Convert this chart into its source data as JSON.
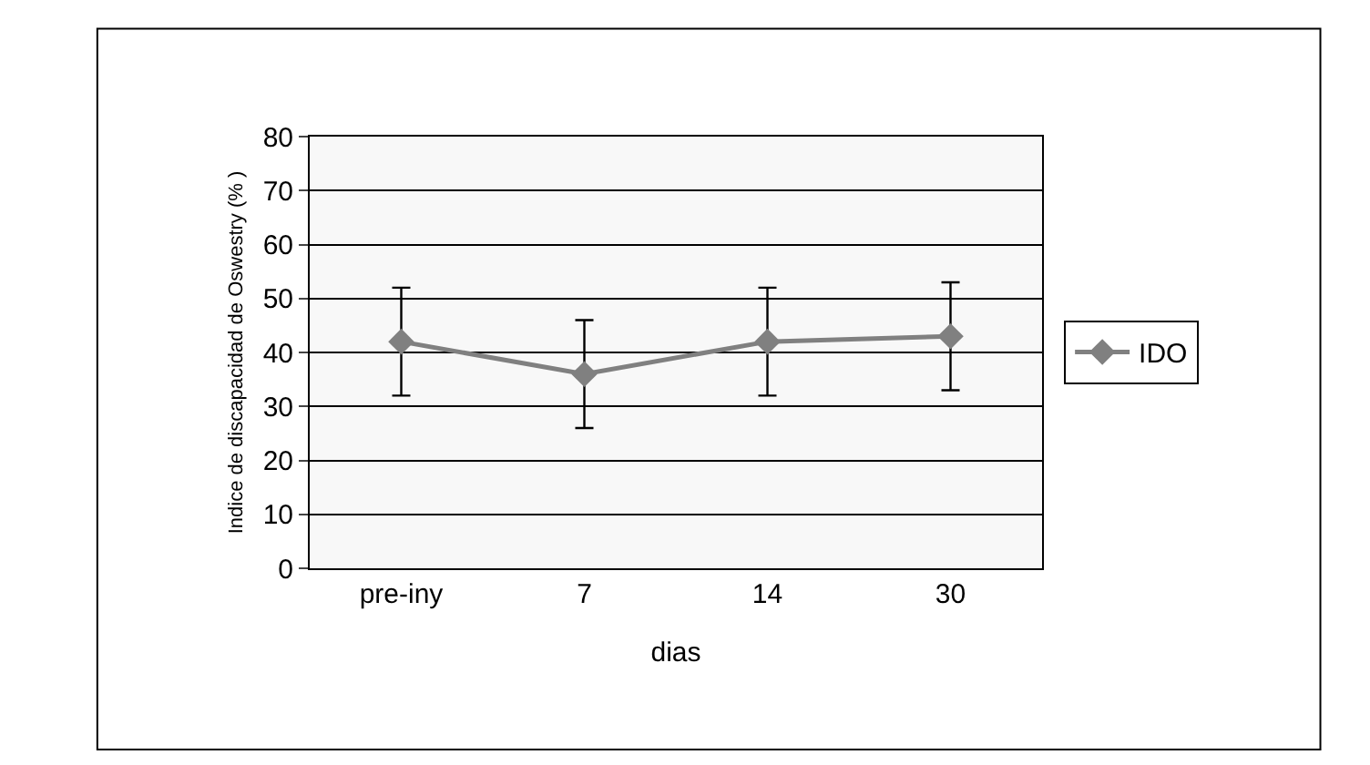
{
  "chart_data": {
    "type": "line",
    "xlabel": "dias",
    "ylabel": "Indice de discapacidad de Oswestry (% )",
    "categories": [
      "pre-iny",
      "7",
      "14",
      "30"
    ],
    "series": [
      {
        "name": "IDO",
        "color": "#808080",
        "values": [
          42,
          36,
          42,
          43
        ],
        "errors": [
          10,
          10,
          10,
          10
        ]
      }
    ],
    "ylim": [
      0,
      80
    ],
    "yticks": [
      0,
      10,
      20,
      30,
      40,
      50,
      60,
      70,
      80
    ],
    "grid": "y",
    "legend": "right",
    "marker": "diamond",
    "line_style": "solid"
  }
}
